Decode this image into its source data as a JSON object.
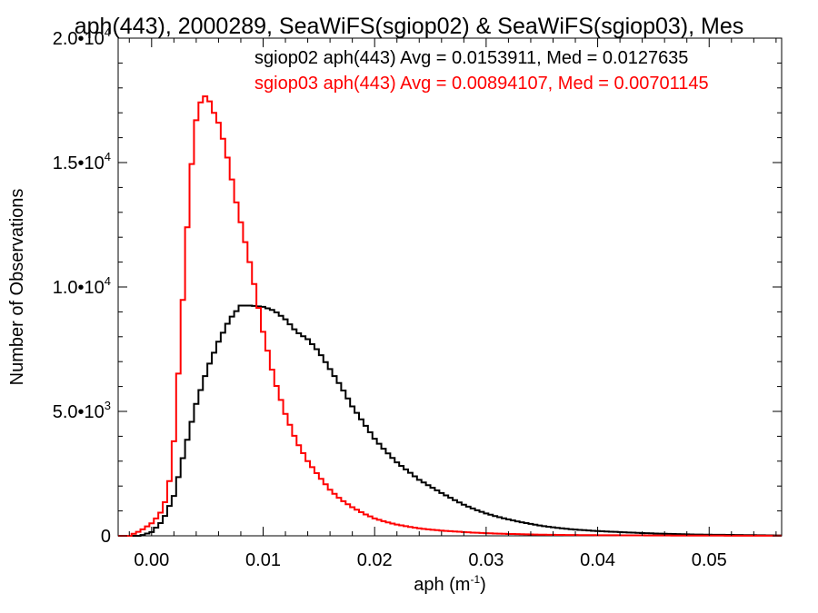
{
  "chart_data": {
    "type": "line",
    "title": "aph(443), 2000289, SeaWiFS(sgiop02) & SeaWiFS(sgiop03), Mes",
    "xlabel": "aph (m",
    "xlabel_sup": "-1",
    "xlabel_close": ")",
    "ylabel": "Number of Observations",
    "xlim": [
      -0.003,
      0.0565
    ],
    "ylim": [
      0,
      20000
    ],
    "x_ticks": [
      {
        "v": 0.0,
        "label": "0.00"
      },
      {
        "v": 0.01,
        "label": "0.01"
      },
      {
        "v": 0.02,
        "label": "0.02"
      },
      {
        "v": 0.03,
        "label": "0.03"
      },
      {
        "v": 0.04,
        "label": "0.04"
      },
      {
        "v": 0.05,
        "label": "0.05"
      }
    ],
    "y_ticks": [
      {
        "v": 0,
        "mant": "0",
        "exp": ""
      },
      {
        "v": 5000,
        "mant": "5.0•10",
        "exp": "3"
      },
      {
        "v": 10000,
        "mant": "1.0•10",
        "exp": "4"
      },
      {
        "v": 15000,
        "mant": "1.5•10",
        "exp": "4"
      },
      {
        "v": 20000,
        "mant": "2.0•10",
        "exp": "4"
      }
    ],
    "grid": false,
    "legend_position": "top-right",
    "series": [
      {
        "name": "sgiop02 aph(443) Avg = 0.0153911, Med = 0.0127635",
        "color": "#000000",
        "step": true,
        "x": [
          -0.003,
          -0.002,
          -0.001,
          0,
          0.001,
          0.002,
          0.003,
          0.004,
          0.005,
          0.006,
          0.007,
          0.008,
          0.009,
          0.01,
          0.011,
          0.012,
          0.013,
          0.014,
          0.015,
          0.016,
          0.017,
          0.018,
          0.019,
          0.02,
          0.021,
          0.022,
          0.023,
          0.024,
          0.025,
          0.026,
          0.027,
          0.028,
          0.029,
          0.03,
          0.031,
          0.032,
          0.033,
          0.034,
          0.035,
          0.036,
          0.037,
          0.038,
          0.039,
          0.04,
          0.041,
          0.042,
          0.043,
          0.044,
          0.045,
          0.046,
          0.047,
          0.048,
          0.049,
          0.05,
          0.051,
          0.052,
          0.053,
          0.054,
          0.055,
          0.056
        ],
        "y": [
          0,
          0,
          0,
          150,
          600,
          1600,
          3500,
          5300,
          6700,
          7800,
          8700,
          9250,
          9250,
          9200,
          9050,
          8700,
          8200,
          7900,
          7400,
          6700,
          6000,
          5200,
          4550,
          3900,
          3400,
          2950,
          2600,
          2250,
          1980,
          1720,
          1480,
          1250,
          1060,
          900,
          770,
          660,
          560,
          480,
          400,
          340,
          290,
          250,
          220,
          190,
          170,
          150,
          130,
          110,
          95,
          80,
          70,
          60,
          50,
          45,
          40,
          35,
          30,
          25,
          20,
          15
        ]
      },
      {
        "name": "sgiop03 aph(443) Avg = 0.00894107, Med = 0.00701145",
        "color": "#ff0000",
        "step": true,
        "x": [
          -0.003,
          -0.002,
          -0.001,
          0,
          0.0005,
          0.001,
          0.0015,
          0.002,
          0.0025,
          0.003,
          0.0035,
          0.004,
          0.0045,
          0.005,
          0.0055,
          0.006,
          0.0065,
          0.007,
          0.0075,
          0.008,
          0.009,
          0.01,
          0.011,
          0.012,
          0.013,
          0.014,
          0.015,
          0.016,
          0.017,
          0.018,
          0.019,
          0.02,
          0.021,
          0.022,
          0.023,
          0.024,
          0.025,
          0.026,
          0.027,
          0.028,
          0.029,
          0.03,
          0.031,
          0.032,
          0.033,
          0.034,
          0.035,
          0.036,
          0.038,
          0.04,
          0.042,
          0.044,
          0.046,
          0.048,
          0.05,
          0.052,
          0.054,
          0.056
        ],
        "y": [
          0,
          0,
          200,
          500,
          750,
          1050,
          1800,
          3800,
          7200,
          11000,
          14500,
          16700,
          17600,
          17700,
          17100,
          16600,
          15800,
          14800,
          13600,
          12600,
          10600,
          8200,
          6300,
          4900,
          3800,
          3000,
          2400,
          1850,
          1450,
          1150,
          900,
          700,
          560,
          450,
          370,
          300,
          250,
          210,
          180,
          150,
          125,
          105,
          90,
          75,
          65,
          55,
          45,
          40,
          30,
          25,
          20,
          16,
          12,
          10,
          8,
          6,
          5,
          4
        ]
      }
    ]
  }
}
